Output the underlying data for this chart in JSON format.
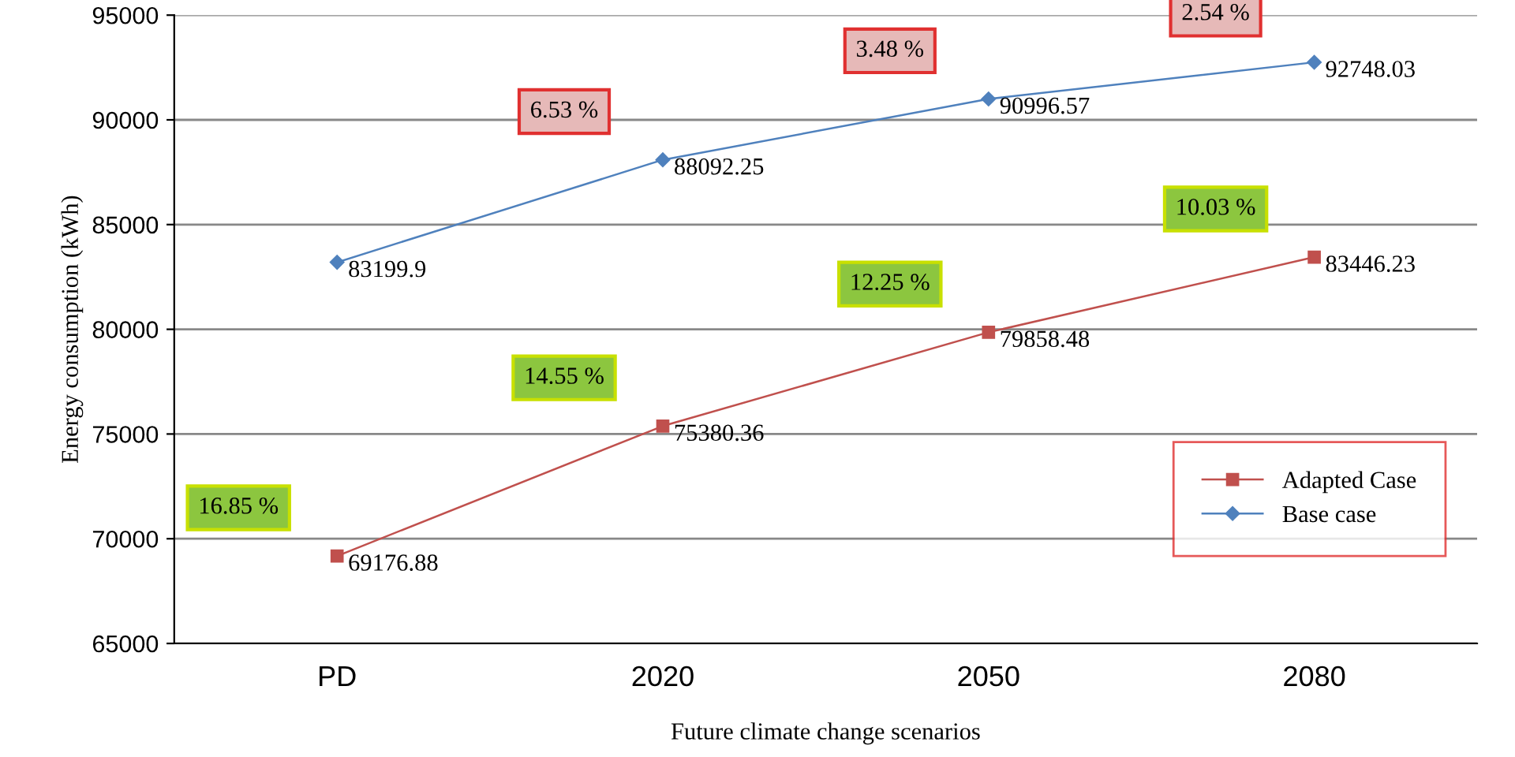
{
  "chart_data": {
    "type": "line",
    "xlabel": "Future climate change scenarios",
    "ylabel": "Energy consumption (kWh)",
    "categories": [
      "PD",
      "2020",
      "2050",
      "2080"
    ],
    "series": [
      {
        "name": "Adapted Case",
        "color": "#c0504d",
        "marker": "square",
        "values": [
          69176.88,
          75380.36,
          79858.48,
          83446.23
        ]
      },
      {
        "name": "Base case",
        "color": "#4f81bd",
        "marker": "diamond",
        "values": [
          83199.9,
          88092.25,
          90996.57,
          92748.03
        ]
      }
    ],
    "ylim": [
      65000,
      95000
    ],
    "yticks": [
      65000,
      70000,
      75000,
      80000,
      85000,
      90000,
      95000
    ],
    "grid": "y",
    "legend": "lower right",
    "data_labels": true,
    "line_style": "solid",
    "annotations": [
      "6.53 %",
      "3.48 %",
      "2.54 %",
      "16.85 %",
      "14.55 %",
      "12.25 %",
      "10.03 %"
    ]
  }
}
